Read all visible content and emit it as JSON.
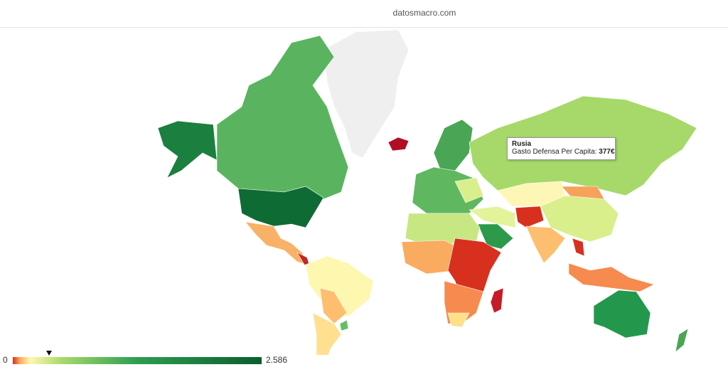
{
  "header": {
    "site": "datosmacro.com"
  },
  "tooltip": {
    "country": "Rusia",
    "metric": "Gasto Defensa Per Capita:",
    "value": {
      "value": 377,
      "label": "377€"
    }
  },
  "legend": {
    "min": 0,
    "max": {
      "value": 2586,
      "label": "2.586"
    }
  }
}
